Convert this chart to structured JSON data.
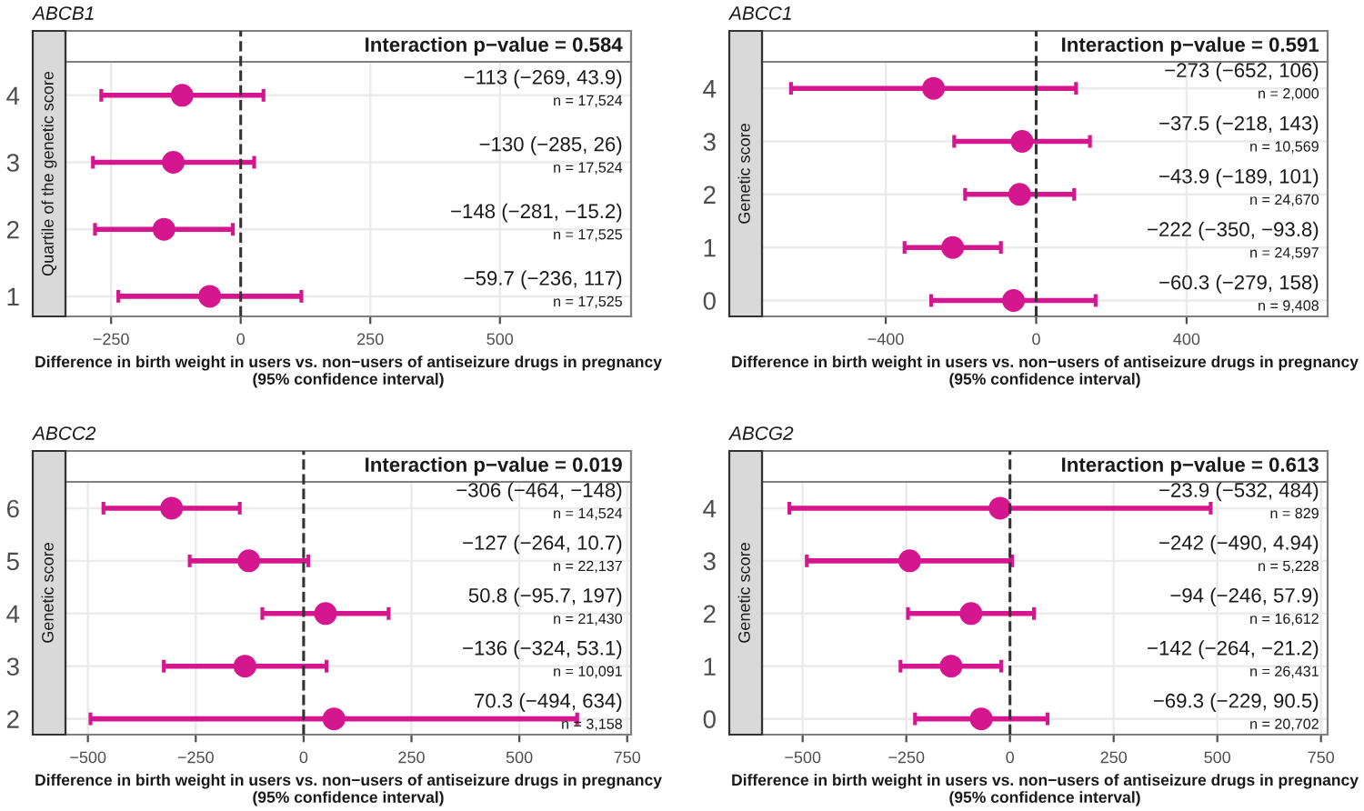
{
  "chart_data": [
    {
      "type": "scatter",
      "orientation": "horizontal",
      "title": "ABCB1",
      "ylabel": "Quartile of the genetic score",
      "xlabel": "Difference in birth weight in users vs. non−users of antiseizure drugs in pregnancy\n(95% confidence interval)",
      "color": "#d4168f",
      "marker": "circle",
      "grid": true,
      "categories": [
        "4",
        "3",
        "2",
        "1"
      ],
      "values": [
        -113,
        -130,
        -148,
        -59.7
      ],
      "errors": [
        [
          -269,
          43.9
        ],
        [
          -285,
          26
        ],
        [
          -281,
          -15.2
        ],
        [
          -236,
          117
        ]
      ],
      "annotations": [
        "Interaction p−value = 0.584",
        "−113 (−269, 43.9)",
        "n = 17,524",
        "−130 (−285, 26)",
        "n = 17,524",
        "−148 (−281, −15.2)",
        "n = 17,525",
        "−59.7 (−236, 117)",
        "n = 17,525"
      ],
      "xlim": [
        -338,
        753
      ],
      "xticks": [
        -250,
        0,
        250,
        500
      ],
      "ref_lines": [
        {
          "axis": "x",
          "value": 0,
          "line_style": "dashed"
        }
      ]
    },
    {
      "type": "scatter",
      "orientation": "horizontal",
      "title": "ABCC1",
      "ylabel": "Genetic score",
      "xlabel": "Difference in birth weight in users vs. non−users of antiseizure drugs in pregnancy\n(95% confidence interval)",
      "color": "#d4168f",
      "marker": "circle",
      "grid": true,
      "categories": [
        "4",
        "3",
        "2",
        "1",
        "0"
      ],
      "values": [
        -273,
        -37.5,
        -43.9,
        -222,
        -60.3
      ],
      "errors": [
        [
          -652,
          106
        ],
        [
          -218,
          143
        ],
        [
          -189,
          101
        ],
        [
          -350,
          -93.8
        ],
        [
          -279,
          158
        ]
      ],
      "annotations": [
        "Interaction p−value = 0.591",
        "−273 (−652, 106)",
        "n = 2,000",
        "−37.5 (−218, 143)",
        "n = 10,569",
        "−43.9 (−189, 101)",
        "n = 24,670",
        "−222 (−350, −93.8)",
        "n = 24,597",
        "−60.3 (−279, 158)",
        "n = 9,408"
      ],
      "xlim": [
        -729,
        775
      ],
      "xticks": [
        -400,
        0,
        400
      ],
      "ref_lines": [
        {
          "axis": "x",
          "value": 0,
          "line_style": "dashed"
        }
      ]
    },
    {
      "type": "scatter",
      "orientation": "horizontal",
      "title": "ABCC2",
      "ylabel": "Genetic score",
      "xlabel": "Difference in birth weight in users vs. non−users of antiseizure drugs in pregnancy\n(95% confidence interval)",
      "color": "#d4168f",
      "marker": "circle",
      "grid": true,
      "categories": [
        "6",
        "5",
        "4",
        "3",
        "2"
      ],
      "values": [
        -306,
        -127,
        50.8,
        -136,
        70.3
      ],
      "errors": [
        [
          -464,
          -148
        ],
        [
          -264,
          10.7
        ],
        [
          -95.7,
          197
        ],
        [
          -324,
          53.1
        ],
        [
          -494,
          634
        ]
      ],
      "annotations": [
        "Interaction p−value = 0.019",
        "−306 (−464, −148)",
        "n = 14,524",
        "−127 (−264, 10.7)",
        "n = 22,137",
        "50.8 (−95.7, 197)",
        "n = 21,430",
        "−136 (−324, 53.1)",
        "n = 10,091",
        "70.3 (−494, 634)",
        "n = 3,158"
      ],
      "xlim": [
        -552,
        759
      ],
      "xticks": [
        -500,
        -250,
        0,
        250,
        500,
        750
      ],
      "ref_lines": [
        {
          "axis": "x",
          "value": 0,
          "line_style": "dashed"
        }
      ]
    },
    {
      "type": "scatter",
      "orientation": "horizontal",
      "title": "ABCG2",
      "ylabel": "Genetic score",
      "xlabel": "Difference in birth weight in users vs. non−users of antiseizure drugs in pregnancy\n(95% confidence interval)",
      "color": "#d4168f",
      "marker": "circle",
      "grid": true,
      "categories": [
        "4",
        "3",
        "2",
        "1",
        "0"
      ],
      "values": [
        -23.9,
        -242,
        -94,
        -142,
        -69.3
      ],
      "errors": [
        [
          -532,
          484
        ],
        [
          -490,
          4.94
        ],
        [
          -246,
          57.9
        ],
        [
          -264,
          -21.2
        ],
        [
          -229,
          90.5
        ]
      ],
      "annotations": [
        "Interaction p−value = 0.613",
        "−23.9 (−532, 484)",
        "n = 829",
        "−242 (−490, 4.94)",
        "n = 5,228",
        "−94 (−246, 57.9)",
        "n = 16,612",
        "−142 (−264, −21.2)",
        "n = 26,431",
        "−69.3 (−229, 90.5)",
        "n = 20,702"
      ],
      "xlim": [
        -598,
        766
      ],
      "xticks": [
        -500,
        -250,
        0,
        250,
        500,
        750
      ],
      "ref_lines": [
        {
          "axis": "x",
          "value": 0,
          "line_style": "dashed"
        }
      ]
    }
  ]
}
